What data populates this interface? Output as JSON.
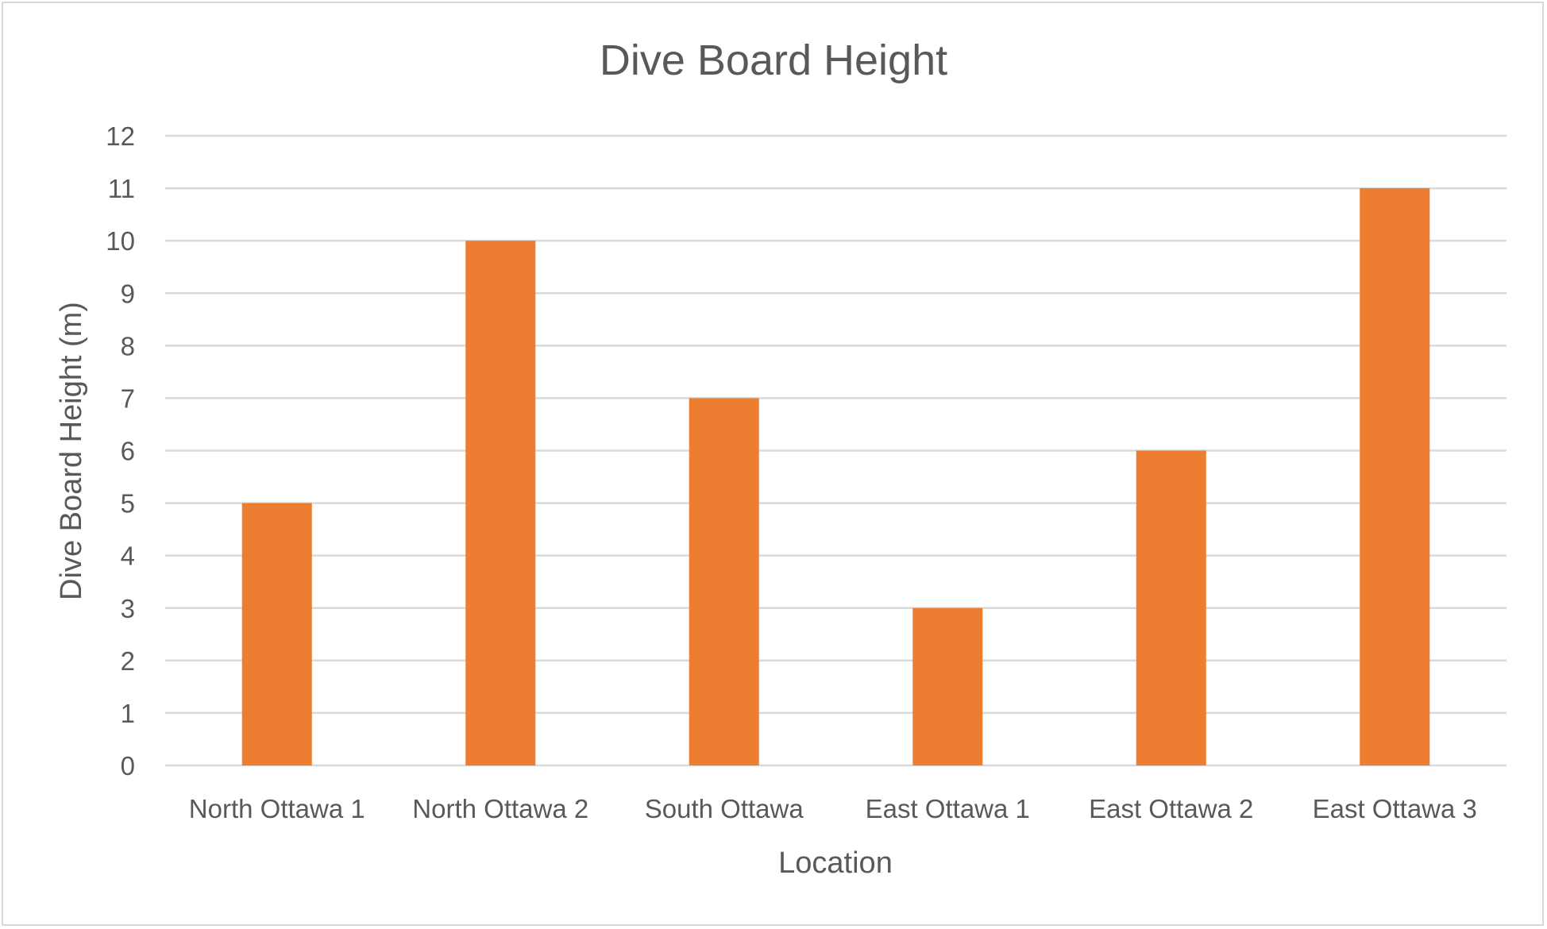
{
  "chart_data": {
    "type": "bar",
    "title": "Dive Board Height",
    "xlabel": "Location",
    "ylabel": "Dive Board Height (m)",
    "categories": [
      "North Ottawa 1",
      "North Ottawa 2",
      "South Ottawa",
      "East Ottawa 1",
      "East Ottawa 2",
      "East Ottawa 3"
    ],
    "values": [
      5,
      10,
      7,
      3,
      6,
      11
    ],
    "ylim": [
      0,
      12
    ],
    "yticks": [
      0,
      1,
      2,
      3,
      4,
      5,
      6,
      7,
      8,
      9,
      10,
      11,
      12
    ],
    "grid": true,
    "legend": "none",
    "bar_color": "#ED7D31"
  }
}
